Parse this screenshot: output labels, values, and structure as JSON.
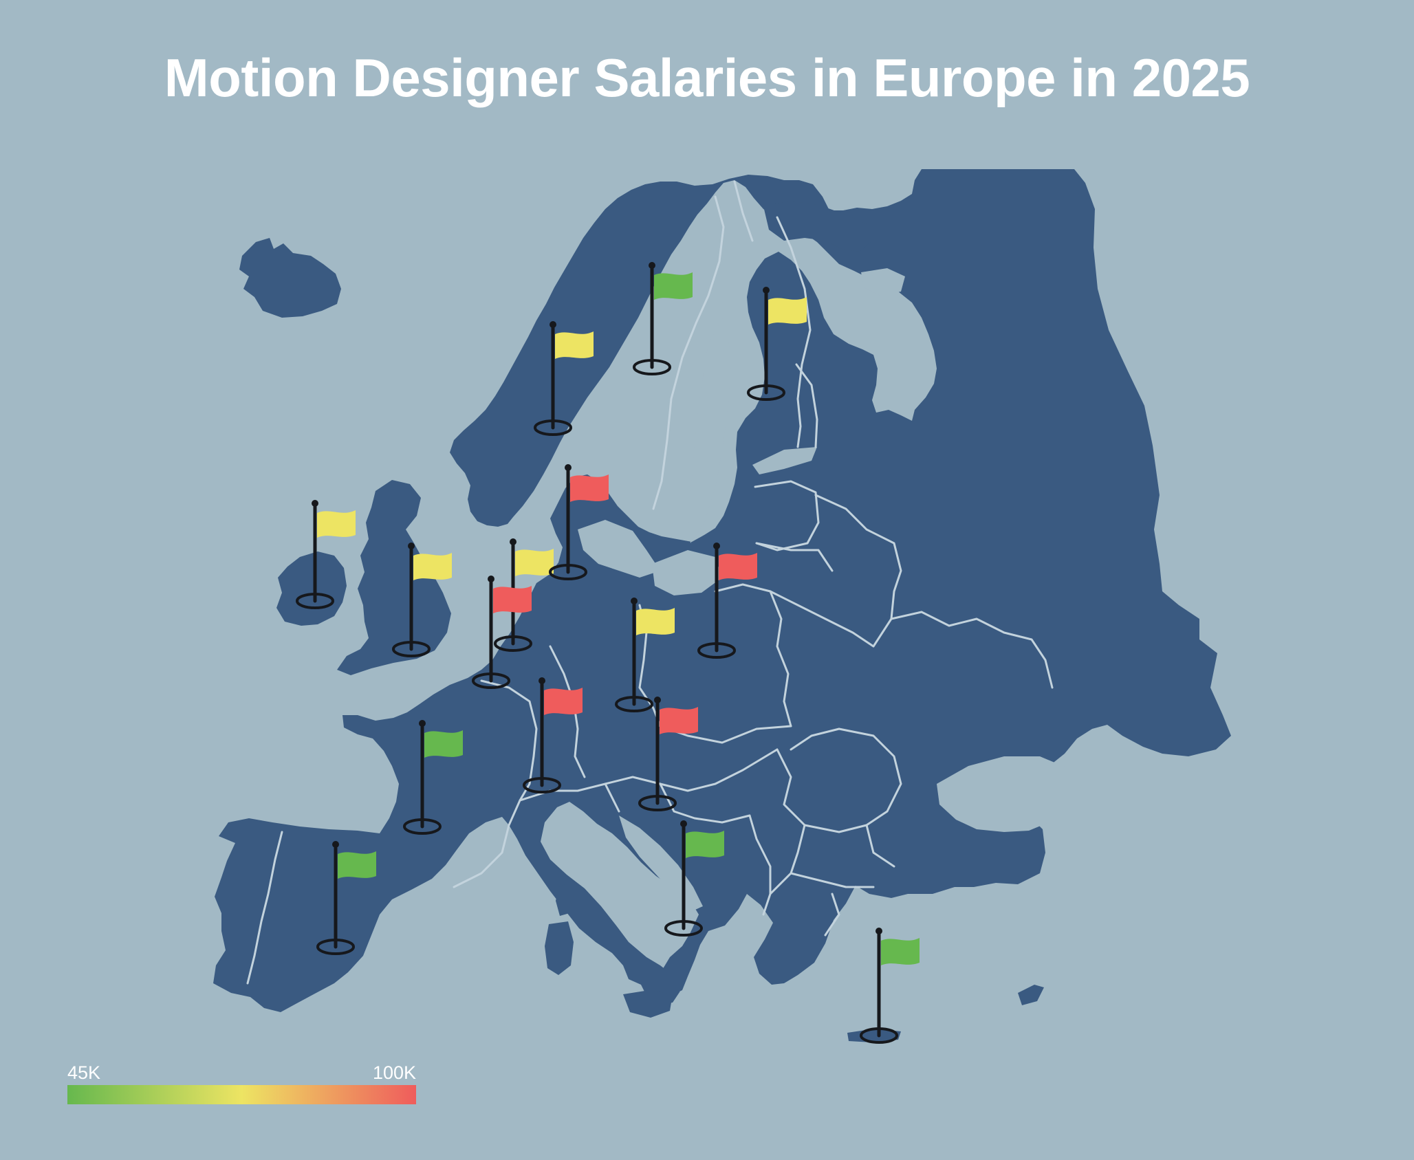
{
  "title": "Motion Designer Salaries in Europe in 2025",
  "legend": {
    "min_label": "45K",
    "max_label": "100K",
    "gradient": [
      "#66b84e",
      "#ede463",
      "#ef5c5c"
    ]
  },
  "colors": {
    "background": "#a2b9c5",
    "land": "#3a5a81",
    "border": "#c3d3dd",
    "low": "#66b84e",
    "mid": "#ede463",
    "high": "#ef5c5c",
    "pole": "#16181c"
  },
  "flags": [
    {
      "id": "ireland",
      "level": "mid"
    },
    {
      "id": "united-kingdom",
      "level": "mid"
    },
    {
      "id": "netherlands",
      "level": "mid"
    },
    {
      "id": "belgium",
      "level": "high"
    },
    {
      "id": "france",
      "level": "low"
    },
    {
      "id": "spain",
      "level": "low"
    },
    {
      "id": "switzerland",
      "level": "high"
    },
    {
      "id": "germany",
      "level": "mid"
    },
    {
      "id": "austria",
      "level": "high"
    },
    {
      "id": "poland",
      "level": "high"
    },
    {
      "id": "denmark",
      "level": "high"
    },
    {
      "id": "norway",
      "level": "mid"
    },
    {
      "id": "sweden",
      "level": "low"
    },
    {
      "id": "finland",
      "level": "mid"
    },
    {
      "id": "italy",
      "level": "low"
    },
    {
      "id": "greece",
      "level": "low"
    }
  ]
}
